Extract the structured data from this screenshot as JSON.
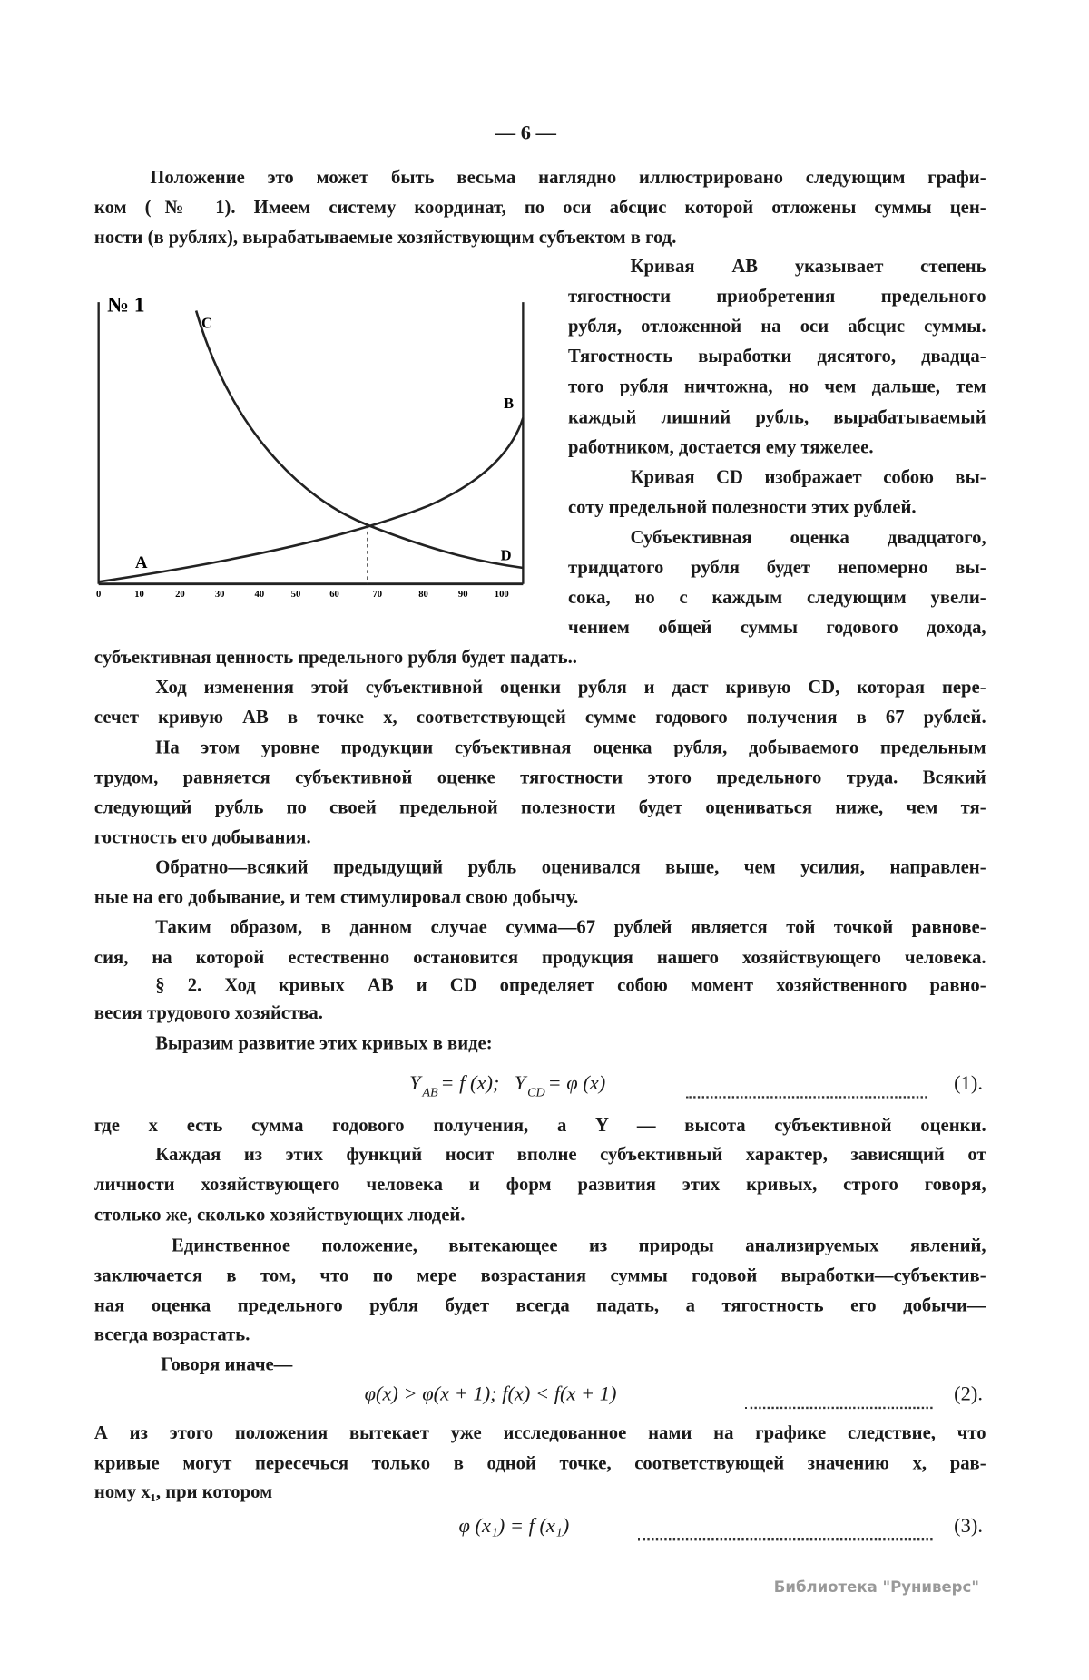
{
  "page_number": "— 6 —",
  "intro": [
    "Положение это может быть весьма наглядно иллюстрировано следующим графи-",
    "ком (№ 1). Имеем систему координат, по оси абсцис которой отложены суммы цен-",
    "ности (в рублях), вырабатываемые хозяйствующим субъектом в год."
  ],
  "figure": {
    "label": "№ 1",
    "curve_labels": [
      "C",
      "B",
      "A",
      "D"
    ],
    "axis_ticks": [
      "0",
      "10",
      "20",
      "30",
      "40",
      "50",
      "60",
      "70",
      "80",
      "90",
      "100"
    ]
  },
  "side_text": [
    "Кривая AB указывает степень",
    "тягостности приобретения предельного",
    "рубля, отложенной на оси абсцис суммы.",
    "Тягостность выработки дясятого, двадца-",
    "того рубля ничтожна, но чем дальше, тем",
    "каждый лишний рубль, вырабатываемый",
    "работником, достается ему тяжелее.",
    "Кривая CD изображает собою вы-",
    "соту предельной полезности этих рублей.",
    "Субъективная оценка двадцатого,",
    "тридцатого рубля будет непомерно вы-",
    "сока, но с каждым следующим увели-",
    "чением общей суммы годового дохода,"
  ],
  "body": [
    "субъективная ценность предельного рубля будет падать..",
    "Ход изменения этой субъективной оценки рубля и даст кривую CD, которая пере-",
    "сечет кривую AB в точке x, соответствующей сумме годового получения в 67 рублей.",
    "На этом уровне продукции субъективная оценка рубля, добываемого предельным",
    "трудом, равняется субъективной оценке тягостности этого предельного труда. Всякий",
    "следующий рубль по своей предельной полезности будет оцениваться ниже, чем тя-",
    "гостность его добывания.",
    "Обратно—всякий предыдущий рубль оценивался выше, чем усилия, направлен-",
    "ные на его добывание, и тем стимулировал свою добычу.",
    "Таким образом, в данном случае сумма—67 рублей является той точкой равнове-",
    "сия, на которой естественно остановится продукция нашего хозяйствующего человека.",
    "§ 2. Ход кривых AB и CD определяет собою момент хозяйственного равно-",
    "весия трудового хозяйства.",
    "Выразим развитие этих кривых в виде:"
  ],
  "formula_1": {
    "terms": [
      {
        "symbol": "Y",
        "subscript": "AB",
        "rhs": "= f (x);"
      },
      {
        "symbol": "Y",
        "subscript": "CD",
        "rhs": "= φ (x)"
      }
    ],
    "number": "(1)."
  },
  "body_2": [
    "где x есть сумма годового получения, а Y — высота субъективной оценки.",
    "Каждая из этих функций носит вполне субъективный характер, зависящий от",
    "личности хозяйствующего человека и форм развития этих кривых, строго говоря,",
    "столько же, сколько хозяйствующих людей.",
    "Единственное положение, вытекающее из природы анализируемых явлений,",
    "заключается в том, что по мере возрастания суммы годовой выработки—субъектив-",
    "ная оценка предельного рубля будет всегда падать, а тягостность его добычи—",
    "всегда возрастать.",
    "Говоря иначе—"
  ],
  "formula_2": {
    "text": "φ(x) > φ(x + 1);  f(x) < f(x + 1)",
    "number": "(2)."
  },
  "body_3": [
    "А из этого положения вытекает уже исследованное нами на графике следствие, что",
    "кривые могут пересечься только в одной точке, соответствующей значению x, рав-",
    "ному x₁, при котором"
  ],
  "formula_3": {
    "text": "φ (x₁) = f (x₁)",
    "number": "(3)."
  },
  "watermark": "Библиотека \"Руниверс\""
}
